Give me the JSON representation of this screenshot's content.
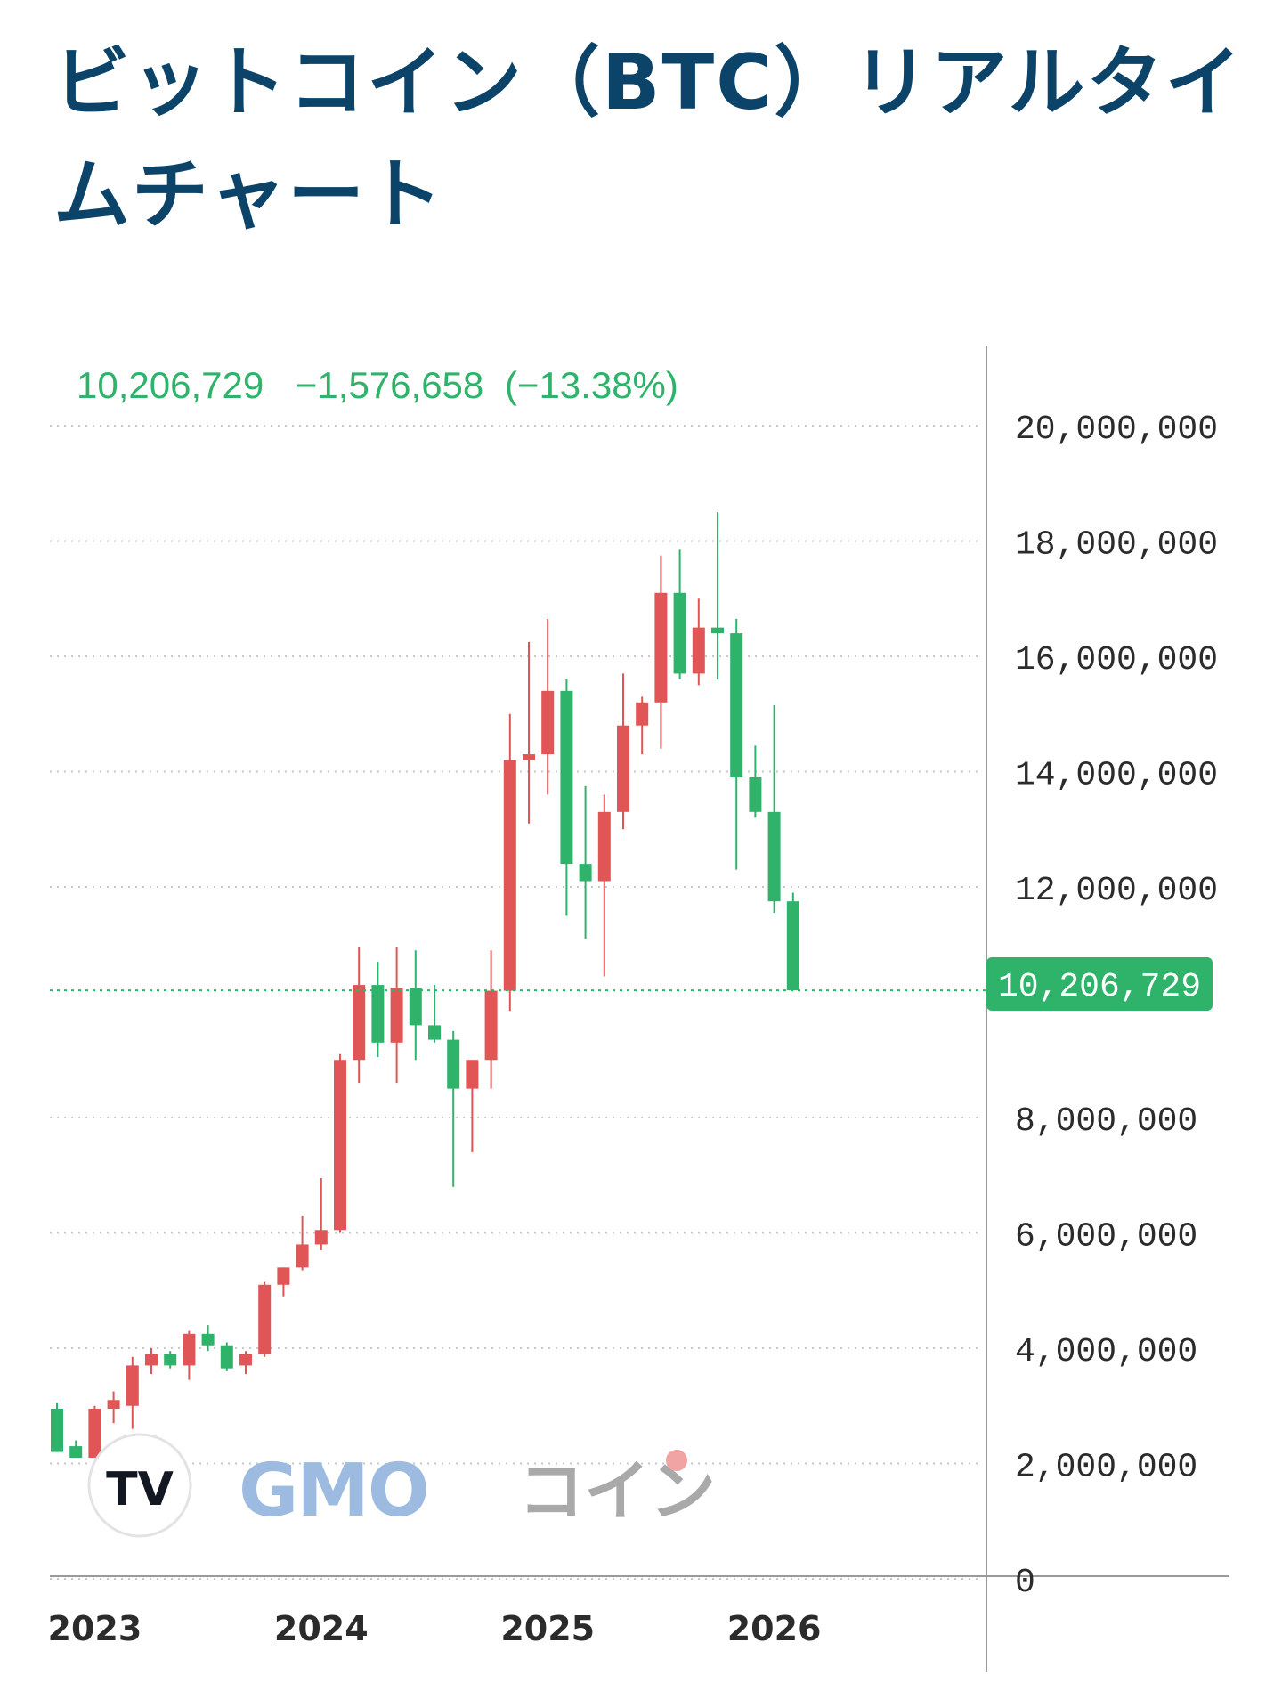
{
  "page": {
    "title": "ビットコイン（BTC）リアルタイムチャート"
  },
  "header_quote": {
    "last": "10,206,729",
    "change": "−1,576,658",
    "change_pct": "(−13.38%)"
  },
  "logos": {
    "tv_text": "TV",
    "gmo_text": "GMO",
    "gmo_kana": "コイン"
  },
  "colors": {
    "up": "#e05555",
    "down": "#2fb36b",
    "title": "#0b4369",
    "grid": "#c9c9c9",
    "axis": "#9a9a9a"
  },
  "chart_data": {
    "type": "candlestick",
    "interval": "monthly",
    "ylim": [
      0,
      21000000
    ],
    "y_ticks": [
      {
        "value": 20000000,
        "label": "20,000,000"
      },
      {
        "value": 18000000,
        "label": "18,000,000"
      },
      {
        "value": 16000000,
        "label": "16,000,000"
      },
      {
        "value": 14000000,
        "label": "14,000,000"
      },
      {
        "value": 12000000,
        "label": "12,000,000"
      },
      {
        "value": 8000000,
        "label": "8,000,000"
      },
      {
        "value": 6000000,
        "label": "6,000,000"
      },
      {
        "value": 4000000,
        "label": "4,000,000"
      },
      {
        "value": 2000000,
        "label": "2,000,000"
      },
      {
        "value": 0,
        "label": "0"
      }
    ],
    "x_ticks": [
      {
        "index": 2,
        "label": "2023"
      },
      {
        "index": 14,
        "label": "2024"
      },
      {
        "index": 26,
        "label": "2025"
      },
      {
        "index": 38,
        "label": "2026"
      }
    ],
    "last_price": {
      "value": 10206729,
      "label": "10,206,729"
    },
    "candles": [
      {
        "o": 2950000,
        "h": 3050000,
        "l": 2200000,
        "c": 2200000
      },
      {
        "o": 2300000,
        "h": 2400000,
        "l": 2100000,
        "c": 2100000
      },
      {
        "o": 2100000,
        "h": 3000000,
        "l": 2100000,
        "c": 2950000
      },
      {
        "o": 2950000,
        "h": 3250000,
        "l": 2700000,
        "c": 3100000
      },
      {
        "o": 3000000,
        "h": 3850000,
        "l": 2600000,
        "c": 3700000
      },
      {
        "o": 3700000,
        "h": 4000000,
        "l": 3550000,
        "c": 3900000
      },
      {
        "o": 3900000,
        "h": 3950000,
        "l": 3650000,
        "c": 3700000
      },
      {
        "o": 3700000,
        "h": 4300000,
        "l": 3450000,
        "c": 4250000
      },
      {
        "o": 4250000,
        "h": 4400000,
        "l": 3950000,
        "c": 4050000
      },
      {
        "o": 4050000,
        "h": 4100000,
        "l": 3600000,
        "c": 3650000
      },
      {
        "o": 3700000,
        "h": 3950000,
        "l": 3550000,
        "c": 3900000
      },
      {
        "o": 3900000,
        "h": 5150000,
        "l": 3850000,
        "c": 5100000
      },
      {
        "o": 5100000,
        "h": 5400000,
        "l": 4900000,
        "c": 5400000
      },
      {
        "o": 5400000,
        "h": 6300000,
        "l": 5350000,
        "c": 5800000
      },
      {
        "o": 5800000,
        "h": 6950000,
        "l": 5700000,
        "c": 6050000
      },
      {
        "o": 6050000,
        "h": 9100000,
        "l": 6000000,
        "c": 9000000
      },
      {
        "o": 9000000,
        "h": 10950000,
        "l": 8600000,
        "c": 10300000
      },
      {
        "o": 10300000,
        "h": 10700000,
        "l": 9050000,
        "c": 9300000
      },
      {
        "o": 9300000,
        "h": 10950000,
        "l": 8600000,
        "c": 10250000
      },
      {
        "o": 10250000,
        "h": 10900000,
        "l": 9000000,
        "c": 9600000
      },
      {
        "o": 9600000,
        "h": 10300000,
        "l": 9300000,
        "c": 9350000
      },
      {
        "o": 9350000,
        "h": 9500000,
        "l": 6800000,
        "c": 8500000
      },
      {
        "o": 8500000,
        "h": 9000000,
        "l": 7400000,
        "c": 9000000
      },
      {
        "o": 9000000,
        "h": 10900000,
        "l": 8500000,
        "c": 10200000
      },
      {
        "o": 10200000,
        "h": 15000000,
        "l": 9850000,
        "c": 14200000
      },
      {
        "o": 14200000,
        "h": 16250000,
        "l": 13100000,
        "c": 14300000
      },
      {
        "o": 14300000,
        "h": 16650000,
        "l": 13600000,
        "c": 15400000
      },
      {
        "o": 15400000,
        "h": 15600000,
        "l": 11500000,
        "c": 12400000
      },
      {
        "o": 12400000,
        "h": 13750000,
        "l": 11100000,
        "c": 12100000
      },
      {
        "o": 12100000,
        "h": 13600000,
        "l": 10450000,
        "c": 13300000
      },
      {
        "o": 13300000,
        "h": 15700000,
        "l": 13000000,
        "c": 14800000
      },
      {
        "o": 14800000,
        "h": 15300000,
        "l": 14300000,
        "c": 15200000
      },
      {
        "o": 15200000,
        "h": 17750000,
        "l": 14400000,
        "c": 17100000
      },
      {
        "o": 17100000,
        "h": 17850000,
        "l": 15600000,
        "c": 15700000
      },
      {
        "o": 15700000,
        "h": 17000000,
        "l": 15500000,
        "c": 16500000
      },
      {
        "o": 16500000,
        "h": 18500000,
        "l": 15600000,
        "c": 16400000
      },
      {
        "o": 16400000,
        "h": 16650000,
        "l": 12300000,
        "c": 13900000
      },
      {
        "o": 13900000,
        "h": 14450000,
        "l": 13200000,
        "c": 13300000
      },
      {
        "o": 13300000,
        "h": 15150000,
        "l": 11550000,
        "c": 11750000
      },
      {
        "o": 11750000,
        "h": 11900000,
        "l": 10206729,
        "c": 10206729
      }
    ]
  }
}
